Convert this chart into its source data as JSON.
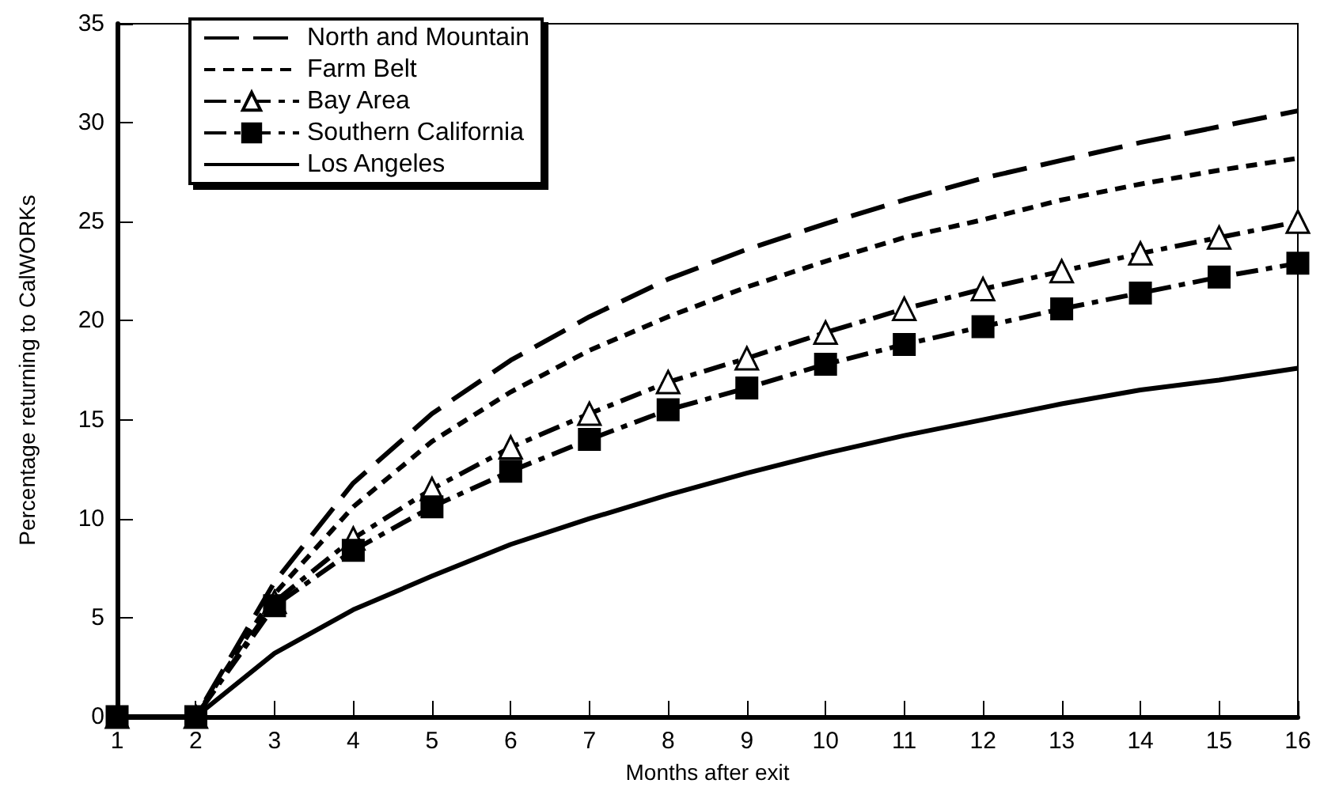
{
  "chart_data": {
    "type": "line",
    "xlabel": "Months after exit",
    "ylabel": "Percentage returning to CalWORKs",
    "x": [
      1,
      2,
      3,
      4,
      5,
      6,
      7,
      8,
      9,
      10,
      11,
      12,
      13,
      14,
      15,
      16
    ],
    "series": [
      {
        "name": "North and Mountain",
        "color": "#000000",
        "line_style": "dashed",
        "marker": "none",
        "values": [
          0,
          0,
          6.8,
          11.8,
          15.3,
          18.0,
          20.2,
          22.1,
          23.6,
          24.9,
          26.1,
          27.2,
          28.1,
          29.0,
          29.8,
          30.6
        ]
      },
      {
        "name": "Farm Belt",
        "color": "#000000",
        "line_style": "dotted",
        "marker": "none",
        "values": [
          0,
          0,
          6.2,
          10.6,
          13.9,
          16.4,
          18.5,
          20.2,
          21.7,
          23.0,
          24.2,
          25.1,
          26.1,
          26.9,
          27.6,
          28.2
        ]
      },
      {
        "name": "Bay Area",
        "color": "#000000",
        "line_style": "dashed",
        "marker": "triangle",
        "values": [
          0,
          0,
          5.8,
          9.0,
          11.5,
          13.6,
          15.3,
          16.9,
          18.1,
          19.4,
          20.6,
          21.6,
          22.5,
          23.4,
          24.2,
          25.0
        ]
      },
      {
        "name": "Southern California",
        "color": "#000000",
        "line_style": "dashed",
        "marker": "square",
        "values": [
          0,
          0,
          5.6,
          8.4,
          10.6,
          12.4,
          14.0,
          15.5,
          16.6,
          17.8,
          18.8,
          19.7,
          20.6,
          21.4,
          22.2,
          22.9
        ]
      },
      {
        "name": "Los Angeles",
        "color": "#000000",
        "line_style": "solid",
        "marker": "none",
        "values": [
          0,
          0,
          3.2,
          5.4,
          7.1,
          8.7,
          10.0,
          11.2,
          12.3,
          13.3,
          14.2,
          15.0,
          15.8,
          16.5,
          17.0,
          17.6
        ]
      }
    ],
    "xlim": [
      1,
      16
    ],
    "xticks": [
      1,
      2,
      3,
      4,
      5,
      6,
      7,
      8,
      9,
      10,
      11,
      12,
      13,
      14,
      15,
      16
    ],
    "ylim": [
      0,
      35
    ],
    "yticks": [
      0,
      5,
      10,
      15,
      20,
      25,
      30,
      35
    ],
    "grid": false,
    "legend": "top left"
  }
}
